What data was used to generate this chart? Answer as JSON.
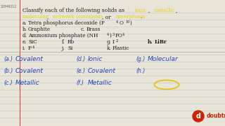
{
  "bg_color": "#e8e4d8",
  "line_color": "#b8c8d8",
  "margin_color": "#cc4444",
  "id_text": "22046312",
  "blue_answer": "#2244bb",
  "yellow": "#e8d000",
  "black": "#1a1a1a",
  "serif_font": "DejaVu Serif",
  "logo_red": "#cc2200",
  "title_words": [
    [
      "Classify each of the following solids as ",
      false
    ],
    [
      "ionic",
      true
    ],
    [
      ", ",
      false
    ],
    [
      "metallic",
      true
    ],
    [
      ",",
      false
    ]
  ],
  "title_words2": [
    [
      "molecular",
      true
    ],
    [
      ", ",
      false
    ],
    [
      "network (covalent)",
      true
    ],
    [
      ", or ",
      false
    ],
    [
      "amorphous",
      true
    ],
    [
      ".",
      false
    ]
  ]
}
